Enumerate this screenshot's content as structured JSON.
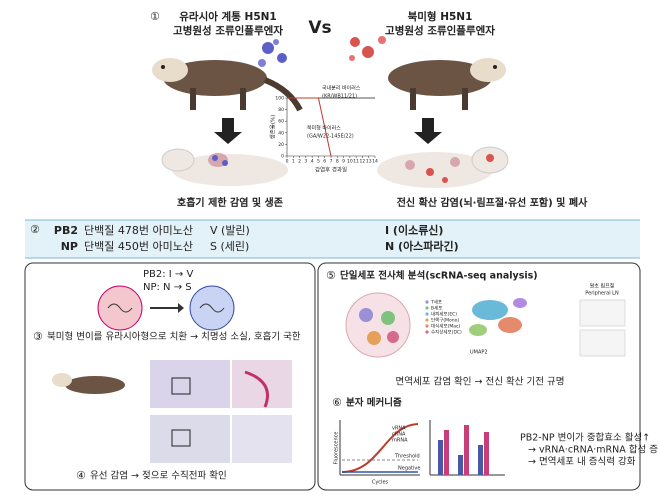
{
  "top": {
    "left": {
      "number": "①",
      "line1": "유라시아 계통 H5N1",
      "line2": "고병원성 조류인플루엔자",
      "caption": "호흡기 제한 감염 및 생존"
    },
    "vs": "Vs",
    "right": {
      "line1": "북미형 H5N1",
      "line2": "고병원성 조류인플루엔자",
      "caption": "전신 확산 감염(뇌·림프절·유선 포함) 및 폐사"
    },
    "survival_chart": {
      "type": "line",
      "x_label": "감염후 경과일",
      "y_label": "생존율(%)",
      "x": [
        0,
        1,
        2,
        3,
        4,
        5,
        6,
        7,
        8,
        9,
        10,
        11,
        12,
        13,
        14
      ],
      "xlim": [
        0,
        14
      ],
      "xticks": [
        0,
        1,
        2,
        3,
        4,
        5,
        6,
        7,
        8,
        9,
        10,
        11,
        12,
        13,
        14
      ],
      "ylim": [
        0,
        100
      ],
      "yticks": [
        0,
        20,
        40,
        60,
        80,
        100
      ],
      "series": [
        {
          "name": "국내분리 바이러스",
          "strain": "(KR/WB11/21)",
          "color": "#555555",
          "values": [
            100,
            100,
            100,
            100,
            100,
            100,
            100,
            100,
            100,
            100,
            100,
            100,
            100,
            100,
            100
          ]
        },
        {
          "name": "북미형 바이러스",
          "strain": "(GA/W22-145E/22)",
          "color": "#c0392b",
          "values": [
            100,
            100,
            100,
            100,
            100,
            100,
            50,
            0,
            null,
            null,
            null,
            null,
            null,
            null,
            null
          ]
        }
      ]
    }
  },
  "mutations": {
    "number": "②",
    "rows": [
      {
        "protein": "PB2",
        "site": "단백질 478번 아미노산",
        "eurasian": "V (발린)",
        "north_american": "I (이소류신)"
      },
      {
        "protein": "NP",
        "site": "단백질 450번 아미노산",
        "eurasian": "S (세린)",
        "north_american": "N (아스파라긴)"
      }
    ]
  },
  "panel_left": {
    "pb2": "PB2: I → V",
    "np": "NP: N → S",
    "step3": {
      "number": "③",
      "text": "북미형 변이를 유라시아형으로 치환 → 치명성 소실, 호흡기 국한"
    },
    "step4": {
      "number": "④",
      "text": "유선 감염 → 젖으로 수직전파 확인"
    }
  },
  "panel_right": {
    "step5": {
      "number": "⑤",
      "text": "단일세포 전사체 분석(scRNA-seq analysis)"
    },
    "legend": [
      "T세포",
      "B세포",
      "내피세포(EC)",
      "단핵구(Mono)",
      "대식세포(Mac)",
      "수지상세포(DC)"
    ],
    "umap_axis": "UMAP2",
    "ln_label": "말초 림프절",
    "ln_label_en": "Peripheral LN",
    "finding5": "면역세포 감염 확인 → 전신 확산 기전 규명",
    "step6": {
      "number": "⑥",
      "text": "분자 메커니즘"
    },
    "qpcr": {
      "y_label": "Fluorescence",
      "x_label": "Cycles",
      "threshold": "Threshold",
      "negative": "Negative",
      "targets": [
        "vRNA",
        "cRNA",
        "mRNA"
      ]
    },
    "finding6": [
      "PB2-NP 변이가 중합효소 활성↑",
      "→ vRNA·cRNA·mRNA 합성 증가",
      "→ 면역세포 내 증식력 강화"
    ]
  }
}
